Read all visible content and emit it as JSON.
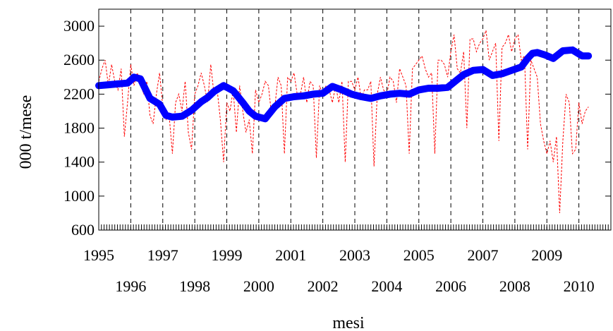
{
  "chart_data": {
    "type": "line",
    "title": "",
    "xlabel": "mesi",
    "ylabel": "000 t/mese",
    "xlim": [
      1995,
      2011
    ],
    "ylim": [
      600,
      3200
    ],
    "yticks": [
      600,
      1000,
      1400,
      1800,
      2200,
      2600,
      3000
    ],
    "xtick_labels_upper": [
      "1995",
      "1997",
      "1999",
      "2001",
      "2003",
      "2005",
      "2007",
      "2009"
    ],
    "xtick_labels_lower": [
      "1996",
      "1998",
      "2000",
      "2002",
      "2004",
      "2006",
      "2008",
      "2010"
    ],
    "grid": "vertical dashed lines at each year boundary",
    "legend": "none",
    "colors": {
      "trend": "#0000ff",
      "monthly": "#ff0000"
    },
    "series": [
      {
        "style": "thick solid blue",
        "x": [
          1995.0,
          1995.3,
          1995.6,
          1995.9,
          1996.05,
          1996.1,
          1996.3,
          1996.6,
          1996.9,
          1997.1,
          1997.3,
          1997.6,
          1997.9,
          1998.2,
          1998.4,
          1998.6,
          1998.9,
          1999.2,
          1999.5,
          1999.7,
          1999.9,
          2000.2,
          2000.5,
          2000.8,
          2001.1,
          2001.4,
          2001.7,
          2002.0,
          2002.3,
          2002.6,
          2002.9,
          2003.2,
          2003.5,
          2003.8,
          2004.1,
          2004.4,
          2004.7,
          2005.0,
          2005.3,
          2005.6,
          2005.9,
          2006.2,
          2006.4,
          2006.7,
          2007.0,
          2007.3,
          2007.6,
          2007.9,
          2008.2,
          2008.4,
          2008.55,
          2008.7,
          2008.95,
          2009.2,
          2009.5,
          2009.8,
          2010.1,
          2010.3
        ],
        "values": [
          2300,
          2310,
          2320,
          2330,
          2380,
          2400,
          2380,
          2150,
          2080,
          1950,
          1930,
          1940,
          2010,
          2110,
          2160,
          2230,
          2300,
          2240,
          2100,
          2000,
          1940,
          1910,
          2050,
          2150,
          2170,
          2180,
          2200,
          2210,
          2290,
          2250,
          2200,
          2170,
          2150,
          2180,
          2200,
          2210,
          2200,
          2250,
          2270,
          2270,
          2280,
          2370,
          2430,
          2480,
          2490,
          2420,
          2440,
          2480,
          2520,
          2620,
          2680,
          2690,
          2660,
          2620,
          2710,
          2720,
          2650,
          2650
        ]
      },
      {
        "style": "thin dashed red",
        "x": [
          1995.0,
          1995.1,
          1995.2,
          1995.3,
          1995.4,
          1995.5,
          1995.6,
          1995.7,
          1995.8,
          1995.9,
          1996.0,
          1996.1,
          1996.2,
          1996.3,
          1996.4,
          1996.5,
          1996.6,
          1996.7,
          1996.8,
          1996.9,
          1997.0,
          1997.1,
          1997.2,
          1997.3,
          1997.4,
          1997.5,
          1997.6,
          1997.7,
          1997.8,
          1997.9,
          1998.0,
          1998.1,
          1998.2,
          1998.3,
          1998.4,
          1998.5,
          1998.6,
          1998.7,
          1998.8,
          1998.9,
          1999.0,
          1999.1,
          1999.2,
          1999.3,
          1999.4,
          1999.5,
          1999.6,
          1999.7,
          1999.8,
          1999.9,
          2000.0,
          2000.1,
          2000.2,
          2000.3,
          2000.4,
          2000.5,
          2000.6,
          2000.7,
          2000.8,
          2000.9,
          2001.0,
          2001.1,
          2001.2,
          2001.3,
          2001.4,
          2001.5,
          2001.6,
          2001.7,
          2001.8,
          2001.9,
          2002.0,
          2002.1,
          2002.2,
          2002.3,
          2002.4,
          2002.5,
          2002.6,
          2002.7,
          2002.8,
          2002.9,
          2003.0,
          2003.1,
          2003.2,
          2003.3,
          2003.4,
          2003.5,
          2003.6,
          2003.7,
          2003.8,
          2003.9,
          2004.0,
          2004.1,
          2004.2,
          2004.3,
          2004.4,
          2004.5,
          2004.6,
          2004.7,
          2004.8,
          2004.9,
          2005.0,
          2005.1,
          2005.2,
          2005.3,
          2005.4,
          2005.5,
          2005.6,
          2005.7,
          2005.8,
          2005.9,
          2006.0,
          2006.1,
          2006.2,
          2006.3,
          2006.4,
          2006.5,
          2006.6,
          2006.7,
          2006.8,
          2006.9,
          2007.0,
          2007.1,
          2007.2,
          2007.3,
          2007.4,
          2007.5,
          2007.6,
          2007.7,
          2007.8,
          2007.9,
          2008.0,
          2008.1,
          2008.2,
          2008.3,
          2008.4,
          2008.5,
          2008.6,
          2008.7,
          2008.8,
          2008.9,
          2009.0,
          2009.1,
          2009.2,
          2009.3,
          2009.4,
          2009.5,
          2009.6,
          2009.7,
          2009.8,
          2009.9,
          2010.0,
          2010.1,
          2010.2,
          2010.3
        ],
        "values": [
          2350,
          2500,
          2600,
          2300,
          2550,
          2350,
          2250,
          2500,
          1700,
          2100,
          2550,
          2300,
          2450,
          2350,
          2200,
          2350,
          1950,
          1850,
          2200,
          2450,
          2050,
          1900,
          1950,
          1500,
          2100,
          2200,
          2000,
          2350,
          1750,
          1550,
          2200,
          2300,
          2450,
          2300,
          2100,
          2550,
          2200,
          2250,
          1900,
          1400,
          2100,
          2000,
          2250,
          1750,
          2300,
          2000,
          1750,
          1900,
          1500,
          2250,
          2100,
          2200,
          2350,
          2300,
          1950,
          2050,
          2400,
          2300,
          1500,
          2400,
          2350,
          2450,
          2200,
          2200,
          2400,
          2100,
          2350,
          2300,
          1450,
          2300,
          2200,
          2300,
          2250,
          2100,
          2300,
          2100,
          2350,
          1400,
          2350,
          2350,
          2250,
          2400,
          2150,
          2250,
          2250,
          2350,
          1350,
          2200,
          2400,
          2250,
          2200,
          2400,
          2350,
          2100,
          2500,
          2400,
          2300,
          1500,
          2500,
          2550,
          2600,
          2650,
          2500,
          2400,
          2450,
          1500,
          2600,
          2600,
          2550,
          2400,
          2700,
          2900,
          2500,
          2450,
          2700,
          1800,
          2850,
          2850,
          2700,
          2800,
          2850,
          2950,
          2600,
          2700,
          2800,
          1650,
          2750,
          2800,
          2900,
          2700,
          2850,
          2900,
          2600,
          2650,
          1550,
          2600,
          2500,
          2400,
          1850,
          1650,
          1500,
          1650,
          1400,
          1700,
          800,
          1650,
          2200,
          2100,
          1500,
          1550,
          2100,
          1850,
          2000,
          2050
        ]
      }
    ]
  }
}
